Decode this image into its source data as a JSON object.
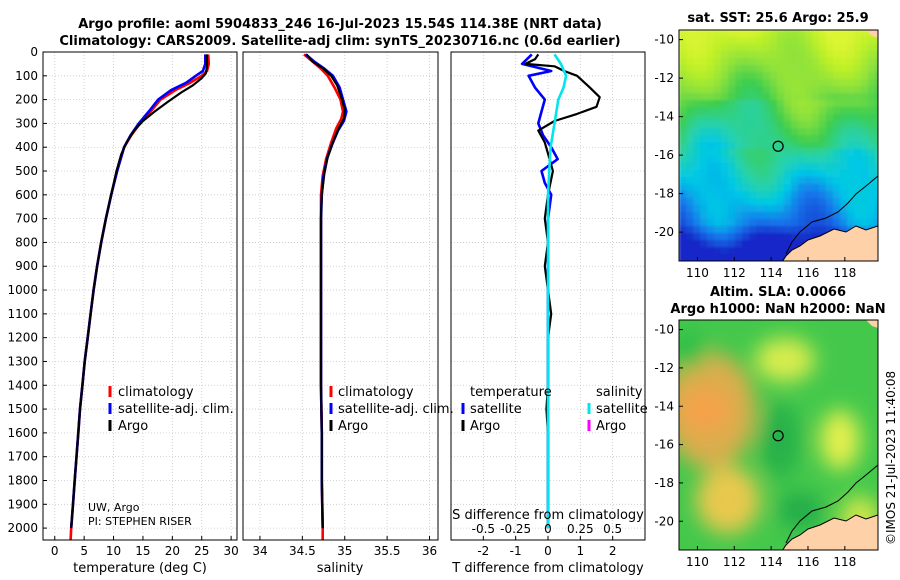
{
  "header": {
    "line1": "Argo profile: aoml 5904833_246 16-Jul-2023 15.54S 114.38E (NRT data)",
    "line2": "Climatology: CARS2009. Satellite-adj clim: synTS_20230716.nc (0.6d earlier)"
  },
  "watermark": "©IMOS 21-Jul-2023 11:40:08",
  "colors": {
    "climatology": "#ff0000",
    "satellite": "#0000ff",
    "argo": "#000000",
    "sat_salinity": "#00e5ee",
    "argo_salinity_diff": "#ff00ff"
  },
  "chart_data": [
    {
      "id": "temperature",
      "type": "line",
      "xlabel": "temperature (deg C)",
      "ylabel": "",
      "xlim": [
        -2,
        31
      ],
      "ylim": [
        2050,
        0
      ],
      "xticks": [
        0,
        5,
        10,
        15,
        20,
        25,
        30
      ],
      "yticks": [
        0,
        100,
        200,
        300,
        400,
        500,
        600,
        700,
        800,
        900,
        1000,
        1100,
        1200,
        1300,
        1400,
        1500,
        1600,
        1700,
        1800,
        1900,
        2000
      ],
      "grid": true,
      "annotation": [
        "UW, Argo",
        "PI: STEPHEN RISER"
      ],
      "legend": [
        "climatology",
        "satellite-adj. clim.",
        "Argo"
      ],
      "series": [
        {
          "name": "climatology",
          "color": "#ff0000",
          "points": [
            [
              26.1,
              10
            ],
            [
              26.2,
              50
            ],
            [
              25.9,
              80
            ],
            [
              25.0,
              100
            ],
            [
              23.0,
              130
            ],
            [
              20.5,
              160
            ],
            [
              18.0,
              200
            ],
            [
              16.3,
              250
            ],
            [
              14.5,
              300
            ],
            [
              13.0,
              350
            ],
            [
              11.8,
              400
            ],
            [
              10.6,
              500
            ],
            [
              9.6,
              600
            ],
            [
              8.7,
              700
            ],
            [
              7.9,
              800
            ],
            [
              7.2,
              900
            ],
            [
              6.6,
              1000
            ],
            [
              6.1,
              1100
            ],
            [
              5.6,
              1200
            ],
            [
              5.1,
              1300
            ],
            [
              4.7,
              1400
            ],
            [
              4.3,
              1500
            ],
            [
              4.0,
              1600
            ],
            [
              3.7,
              1700
            ],
            [
              3.4,
              1800
            ],
            [
              3.1,
              1900
            ],
            [
              2.8,
              2000
            ],
            [
              2.7,
              2050
            ]
          ]
        },
        {
          "name": "satellite-adj. clim.",
          "color": "#0000ff",
          "points": [
            [
              25.6,
              10
            ],
            [
              25.6,
              50
            ],
            [
              25.2,
              80
            ],
            [
              24.0,
              100
            ],
            [
              22.3,
              130
            ],
            [
              19.8,
              160
            ],
            [
              17.6,
              200
            ],
            [
              16.0,
              250
            ],
            [
              14.3,
              300
            ],
            [
              12.9,
              350
            ],
            [
              11.8,
              400
            ],
            [
              10.6,
              500
            ],
            [
              9.6,
              600
            ],
            [
              8.7,
              700
            ],
            [
              7.9,
              800
            ],
            [
              7.2,
              900
            ],
            [
              6.6,
              1000
            ],
            [
              6.1,
              1100
            ],
            [
              5.6,
              1200
            ],
            [
              5.1,
              1300
            ],
            [
              4.7,
              1400
            ],
            [
              4.3,
              1500
            ],
            [
              4.0,
              1600
            ],
            [
              3.7,
              1700
            ],
            [
              3.4,
              1800
            ],
            [
              3.1,
              1900
            ],
            [
              2.8,
              2000
            ]
          ]
        },
        {
          "name": "Argo",
          "color": "#000000",
          "points": [
            [
              25.9,
              10
            ],
            [
              25.9,
              60
            ],
            [
              25.7,
              90
            ],
            [
              25.0,
              110
            ],
            [
              23.5,
              140
            ],
            [
              21.5,
              170
            ],
            [
              19.2,
              210
            ],
            [
              17.0,
              250
            ],
            [
              15.0,
              290
            ],
            [
              13.5,
              330
            ],
            [
              12.2,
              380
            ],
            [
              11.3,
              430
            ],
            [
              10.5,
              500
            ],
            [
              9.6,
              600
            ],
            [
              8.7,
              700
            ],
            [
              7.9,
              800
            ],
            [
              7.2,
              900
            ],
            [
              6.6,
              1000
            ],
            [
              6.1,
              1100
            ],
            [
              5.6,
              1200
            ],
            [
              5.1,
              1300
            ],
            [
              4.7,
              1400
            ],
            [
              4.3,
              1500
            ],
            [
              4.0,
              1600
            ],
            [
              3.7,
              1700
            ],
            [
              3.4,
              1800
            ],
            [
              3.1,
              1900
            ],
            [
              2.8,
              2000
            ]
          ]
        }
      ]
    },
    {
      "id": "salinity",
      "type": "line",
      "xlabel": "salinity",
      "xlim": [
        33.8,
        36.1
      ],
      "ylim": [
        2050,
        0
      ],
      "xticks": [
        34,
        34.5,
        35,
        35.5,
        36
      ],
      "xticklabels": [
        "34",
        "34.5",
        "35",
        "35.5",
        "36"
      ],
      "grid": true,
      "legend": [
        "climatology",
        "satellite-adj. clim.",
        "Argo"
      ],
      "series": [
        {
          "name": "climatology",
          "color": "#ff0000",
          "points": [
            [
              34.52,
              10
            ],
            [
              34.62,
              40
            ],
            [
              34.72,
              70
            ],
            [
              34.8,
              100
            ],
            [
              34.88,
              150
            ],
            [
              34.95,
              200
            ],
            [
              34.98,
              250
            ],
            [
              34.96,
              280
            ],
            [
              34.9,
              320
            ],
            [
              34.84,
              380
            ],
            [
              34.78,
              450
            ],
            [
              34.74,
              520
            ],
            [
              34.72,
              600
            ],
            [
              34.72,
              700
            ],
            [
              34.72,
              800
            ],
            [
              34.72,
              900
            ],
            [
              34.72,
              1000
            ],
            [
              34.72,
              1200
            ],
            [
              34.72,
              1400
            ],
            [
              34.73,
              1600
            ],
            [
              34.73,
              1800
            ],
            [
              34.74,
              2000
            ],
            [
              34.74,
              2050
            ]
          ]
        },
        {
          "name": "satellite-adj. clim.",
          "color": "#0000ff",
          "points": [
            [
              34.54,
              10
            ],
            [
              34.64,
              40
            ],
            [
              34.76,
              70
            ],
            [
              34.86,
              100
            ],
            [
              34.94,
              150
            ],
            [
              34.98,
              200
            ],
            [
              35.02,
              250
            ],
            [
              34.99,
              290
            ],
            [
              34.92,
              330
            ],
            [
              34.85,
              390
            ],
            [
              34.79,
              450
            ],
            [
              34.75,
              520
            ],
            [
              34.73,
              600
            ],
            [
              34.72,
              700
            ],
            [
              34.72,
              800
            ],
            [
              34.72,
              900
            ],
            [
              34.72,
              1000
            ],
            [
              34.72,
              1200
            ],
            [
              34.72,
              1400
            ],
            [
              34.73,
              1600
            ],
            [
              34.73,
              1800
            ],
            [
              34.74,
              2000
            ]
          ]
        },
        {
          "name": "Argo",
          "color": "#000000",
          "points": [
            [
              34.55,
              10
            ],
            [
              34.62,
              40
            ],
            [
              34.75,
              70
            ],
            [
              34.84,
              100
            ],
            [
              34.91,
              140
            ],
            [
              34.96,
              190
            ],
            [
              35.0,
              240
            ],
            [
              34.99,
              280
            ],
            [
              34.93,
              320
            ],
            [
              34.86,
              380
            ],
            [
              34.8,
              440
            ],
            [
              34.76,
              510
            ],
            [
              34.73,
              600
            ],
            [
              34.72,
              700
            ],
            [
              34.72,
              800
            ],
            [
              34.72,
              900
            ],
            [
              34.72,
              1000
            ],
            [
              34.72,
              1200
            ],
            [
              34.72,
              1400
            ],
            [
              34.73,
              1600
            ],
            [
              34.73,
              1800
            ],
            [
              34.74,
              2000
            ]
          ]
        }
      ]
    },
    {
      "id": "differences",
      "type": "line",
      "xlabel": "T difference from climatology",
      "top_axis_label": "S difference from climatology",
      "xlim": [
        -3,
        3
      ],
      "ylim": [
        2050,
        0
      ],
      "xticks": [
        -2,
        -1,
        0,
        1,
        2
      ],
      "xticklabels": [
        "-2",
        "-1",
        "0",
        "1",
        "2"
      ],
      "s_xticks": [
        -0.5,
        -0.25,
        0,
        0.25,
        0.5
      ],
      "s_xticklabels": [
        "-0.5",
        "-0.25",
        "0",
        "0.25",
        "0.5"
      ],
      "grid": true,
      "legend_temperature": {
        "title": "temperature",
        "items": [
          "satellite",
          "Argo"
        ]
      },
      "legend_salinity": {
        "title": "salinity",
        "items": [
          "satellite",
          "Argo"
        ]
      },
      "series": [
        {
          "name": "T satellite - clim",
          "color": "#0000ff",
          "points": [
            [
              -0.5,
              10
            ],
            [
              -0.8,
              50
            ],
            [
              0.1,
              80
            ],
            [
              -0.6,
              100
            ],
            [
              -0.4,
              150
            ],
            [
              -0.1,
              200
            ],
            [
              -0.2,
              250
            ],
            [
              -0.3,
              300
            ],
            [
              -0.15,
              350
            ],
            [
              0.1,
              400
            ],
            [
              0.3,
              450
            ],
            [
              -0.2,
              500
            ],
            [
              -0.1,
              550
            ],
            [
              0.1,
              600
            ],
            [
              0.0,
              700
            ],
            [
              0.0,
              900
            ],
            [
              0.0,
              1200
            ],
            [
              0.0,
              1600
            ],
            [
              0.0,
              2000
            ]
          ]
        },
        {
          "name": "T Argo - clim",
          "color": "#000000",
          "points": [
            [
              -0.3,
              10
            ],
            [
              -0.4,
              30
            ],
            [
              -0.7,
              50
            ],
            [
              0.2,
              60
            ],
            [
              0.5,
              80
            ],
            [
              0.9,
              100
            ],
            [
              1.3,
              150
            ],
            [
              1.6,
              190
            ],
            [
              1.5,
              230
            ],
            [
              0.9,
              260
            ],
            [
              0.2,
              290
            ],
            [
              -0.3,
              330
            ],
            [
              -0.1,
              380
            ],
            [
              0.05,
              450
            ],
            [
              0.15,
              500
            ],
            [
              0.0,
              600
            ],
            [
              -0.1,
              700
            ],
            [
              0.0,
              800
            ],
            [
              -0.1,
              900
            ],
            [
              0.0,
              1000
            ],
            [
              0.1,
              1100
            ],
            [
              0.0,
              1200
            ],
            [
              0.0,
              1400
            ],
            [
              -0.05,
              1500
            ],
            [
              0.0,
              1600
            ],
            [
              0.0,
              1800
            ],
            [
              0.0,
              2000
            ]
          ]
        },
        {
          "name": "S satellite - clim",
          "color": "#00e5ee",
          "axis": "salinity",
          "points": [
            [
              0.05,
              10
            ],
            [
              0.1,
              50
            ],
            [
              0.14,
              100
            ],
            [
              0.12,
              150
            ],
            [
              0.08,
              200
            ],
            [
              0.05,
              300
            ],
            [
              0.02,
              400
            ],
            [
              0.01,
              500
            ],
            [
              0.0,
              600
            ],
            [
              0.0,
              800
            ],
            [
              0.0,
              1200
            ],
            [
              0.0,
              1600
            ],
            [
              0.0,
              2000
            ]
          ]
        }
      ]
    },
    {
      "id": "sst-map",
      "type": "heatmap",
      "title": "sat. SST: 25.6 Argo: 25.9",
      "xlim": [
        109,
        119.8
      ],
      "ylim": [
        -21.5,
        -9.5
      ],
      "xticks": [
        110,
        112,
        114,
        116,
        118
      ],
      "yticks": [
        -10,
        -12,
        -14,
        -16,
        -18,
        -20
      ],
      "marker": [
        114.38,
        -15.54
      ]
    },
    {
      "id": "sla-map",
      "type": "heatmap",
      "title_line1": "Altim. SLA: 0.0066",
      "title_line2": "Argo h1000: NaN h2000: NaN",
      "xlim": [
        109,
        119.8
      ],
      "ylim": [
        -21.5,
        -9.5
      ],
      "xticks": [
        110,
        112,
        114,
        116,
        118
      ],
      "yticks": [
        -10,
        -12,
        -14,
        -16,
        -18,
        -20
      ],
      "marker": [
        114.38,
        -15.54
      ]
    }
  ]
}
